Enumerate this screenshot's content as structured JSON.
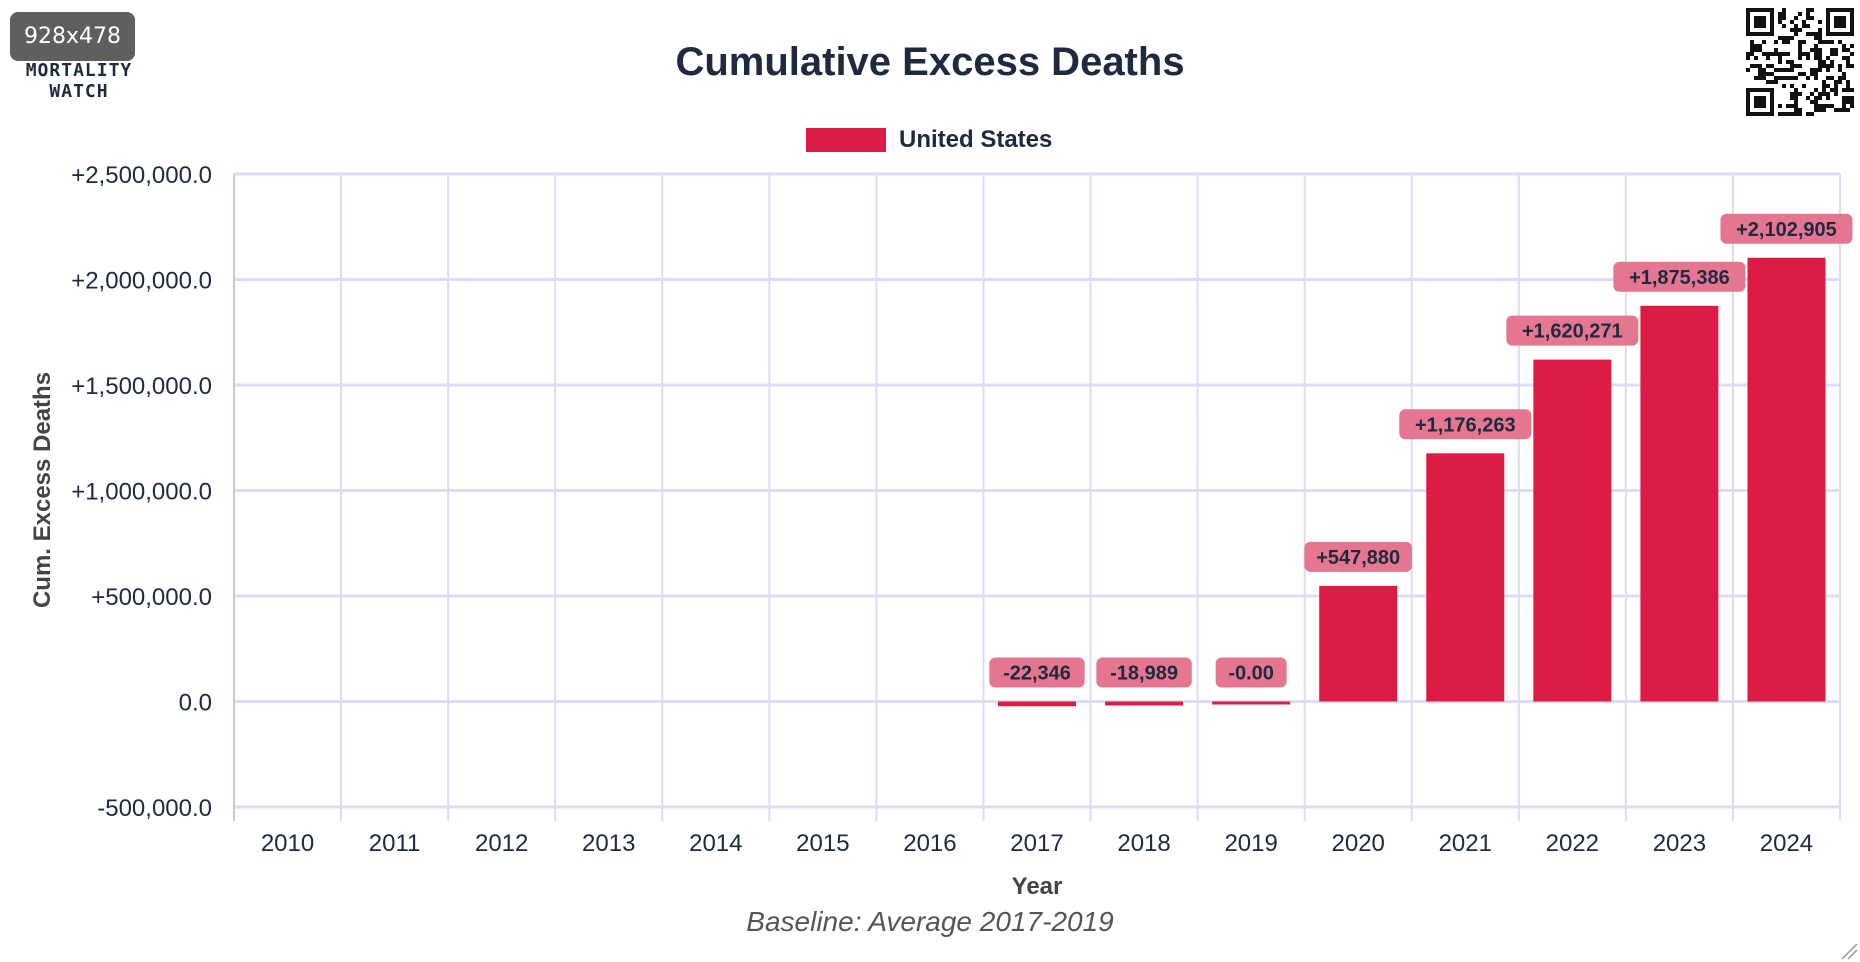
{
  "badge": "928x478",
  "logo": {
    "line1": "MORTALITY",
    "line2": "WATCH"
  },
  "colors": {
    "bar": "#dc1c44",
    "label_bg": "#e57690",
    "text": "#1e2a3f",
    "grid": "#dcdcf4"
  },
  "chart_data": {
    "type": "bar",
    "title": "Cumulative Excess Deaths",
    "xlabel": "Year",
    "ylabel": "Cum. Excess Deaths",
    "note": "Baseline: Average 2017-2019",
    "ylim": [
      -500000,
      2500000
    ],
    "yticks": [
      -500000,
      0,
      500000,
      1000000,
      1500000,
      2000000,
      2500000
    ],
    "ytick_labels": [
      "-500,000.0",
      "0.0",
      "+500,000.0",
      "+1,000,000.0",
      "+1,500,000.0",
      "+2,000,000.0",
      "+2,500,000.0"
    ],
    "grid": true,
    "legend_position": "top-center",
    "categories": [
      "2010",
      "2011",
      "2012",
      "2013",
      "2014",
      "2015",
      "2016",
      "2017",
      "2018",
      "2019",
      "2020",
      "2021",
      "2022",
      "2023",
      "2024"
    ],
    "series": [
      {
        "name": "United States",
        "color": "#dc1c44",
        "values": [
          null,
          null,
          null,
          null,
          null,
          null,
          null,
          -22346,
          -18989,
          0,
          547880,
          1176263,
          1620271,
          1875386,
          2102905
        ],
        "labels": [
          "",
          "",
          "",
          "",
          "",
          "",
          "",
          "-22,346",
          "-18,989",
          "-0.00",
          "+547,880",
          "+1,176,263",
          "+1,620,271",
          "+1,875,386",
          "+2,102,905"
        ]
      }
    ]
  }
}
